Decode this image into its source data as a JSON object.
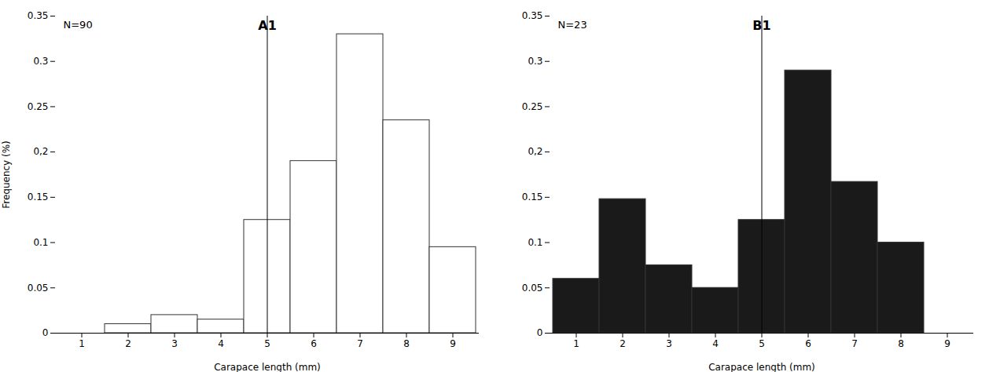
{
  "chart_data": [
    {
      "type": "bar",
      "title": "A1",
      "annotations": [
        "N=90"
      ],
      "categories": [
        1,
        2,
        3,
        4,
        5,
        6,
        7,
        8,
        9
      ],
      "values": [
        0.0,
        0.01,
        0.02,
        0.015,
        0.125,
        0.19,
        0.33,
        0.235,
        0.095
      ],
      "color": "white",
      "x_label": "Carapace length (mm)",
      "y_label": "Frequency (%)",
      "ylim": [
        0,
        0.35
      ],
      "yticks": [
        0,
        0.05,
        0.1,
        0.15,
        {
          "value": 0.2,
          "label": "0,2"
        },
        0.25,
        0.3,
        0.35
      ],
      "grid": false
    },
    {
      "type": "bar",
      "title": "B1",
      "annotations": [
        "N=23"
      ],
      "categories": [
        1,
        2,
        3,
        4,
        5,
        6,
        7,
        8,
        9
      ],
      "values": [
        0.06,
        0.148,
        0.075,
        0.05,
        0.125,
        0.29,
        0.167,
        0.1,
        0.0
      ],
      "color": "#1a1a1a",
      "x_label": "Carapace length (mm)",
      "ylim": [
        0,
        0.35
      ],
      "yticks": [
        0,
        0.05,
        0.1,
        0.15,
        {
          "value": 0.2,
          "label": "0,2"
        },
        0.25,
        0.3,
        0.35
      ],
      "grid": false
    }
  ]
}
